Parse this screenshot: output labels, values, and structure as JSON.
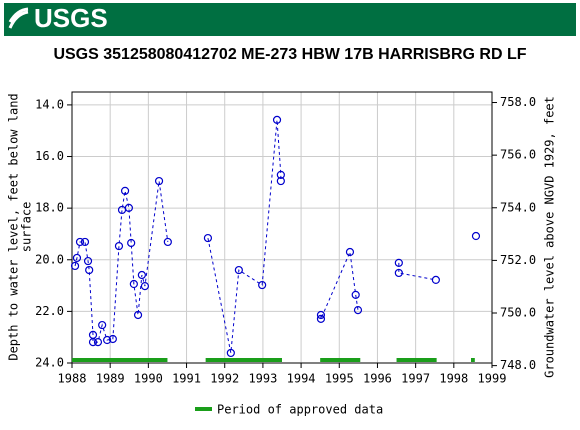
{
  "header": {
    "logo": "USGS"
  },
  "chart_data": {
    "type": "line",
    "title": "USGS 351258080412702 ME-273 HBW 17B HARRISBRG RD LF",
    "ylabel": [
      "Depth to water level, feet below land",
      "surface"
    ],
    "y2label": "Groundwater level above NGVD 1929, feet",
    "xlim": [
      1988,
      1999
    ],
    "xticks": [
      1988,
      1989,
      1990,
      1991,
      1992,
      1993,
      1994,
      1995,
      1996,
      1997,
      1998,
      1999
    ],
    "ylim": [
      13.5,
      24.0
    ],
    "yticks": [
      {
        "value": 14,
        "label": "14.0"
      },
      {
        "value": 16,
        "label": "16.0"
      },
      {
        "value": 18,
        "label": "18.0"
      },
      {
        "value": 20,
        "label": "20.0"
      },
      {
        "value": 22,
        "label": "22.0"
      },
      {
        "value": 24,
        "label": "24.0"
      }
    ],
    "y2lim": [
      748.1,
      758.4
    ],
    "y2ticks": [
      {
        "value": 758,
        "label": "758.0"
      },
      {
        "value": 756,
        "label": "756.0"
      },
      {
        "value": 754,
        "label": "754.0"
      },
      {
        "value": 752,
        "label": "752.0"
      },
      {
        "value": 750,
        "label": "750.0"
      },
      {
        "value": 748,
        "label": "748.0"
      }
    ],
    "y_inverted": true,
    "grid": true,
    "x": [
      1988.08,
      1988.13,
      1988.21,
      1988.34,
      1988.42,
      1988.45,
      1988.55,
      1988.55,
      1988.68,
      1988.79,
      1988.92,
      1989.07,
      1989.23,
      1989.31,
      1989.39,
      1989.49,
      1989.55,
      1989.62,
      1989.73,
      1989.83,
      1989.91,
      1990.28,
      1990.51,
      1991.0,
      1991.56,
      1992.16,
      1992.37,
      1992.98,
      1993.37,
      1993.47,
      1993.47,
      1994.0,
      1994.52,
      1994.52,
      1995.28,
      1995.43,
      1995.49,
      1996.0,
      1996.56,
      1996.56,
      1997.53,
      1998.0,
      1998.58
    ],
    "series": [
      {
        "color": "#0000cc",
        "values": [
          20.24,
          19.93,
          19.31,
          19.31,
          20.05,
          20.4,
          22.91,
          23.19,
          23.19,
          22.53,
          23.11,
          23.07,
          19.47,
          18.07,
          17.33,
          17.99,
          19.35,
          20.94,
          22.14,
          20.59,
          21.02,
          16.95,
          19.31,
          null,
          19.16,
          23.61,
          20.4,
          20.98,
          14.58,
          16.71,
          16.95,
          null,
          22.14,
          22.29,
          19.7,
          21.36,
          21.95,
          null,
          20.12,
          20.51,
          20.78,
          null,
          19.08
        ]
      }
    ],
    "approved_periods": {
      "name": "Period of approved data",
      "color": "#1a9e1a",
      "ranges": [
        [
          1988.0,
          1990.5
        ],
        [
          1991.5,
          1993.5
        ],
        [
          1994.5,
          1995.55
        ],
        [
          1996.5,
          1997.55
        ],
        [
          1998.45,
          1998.55
        ]
      ]
    }
  }
}
